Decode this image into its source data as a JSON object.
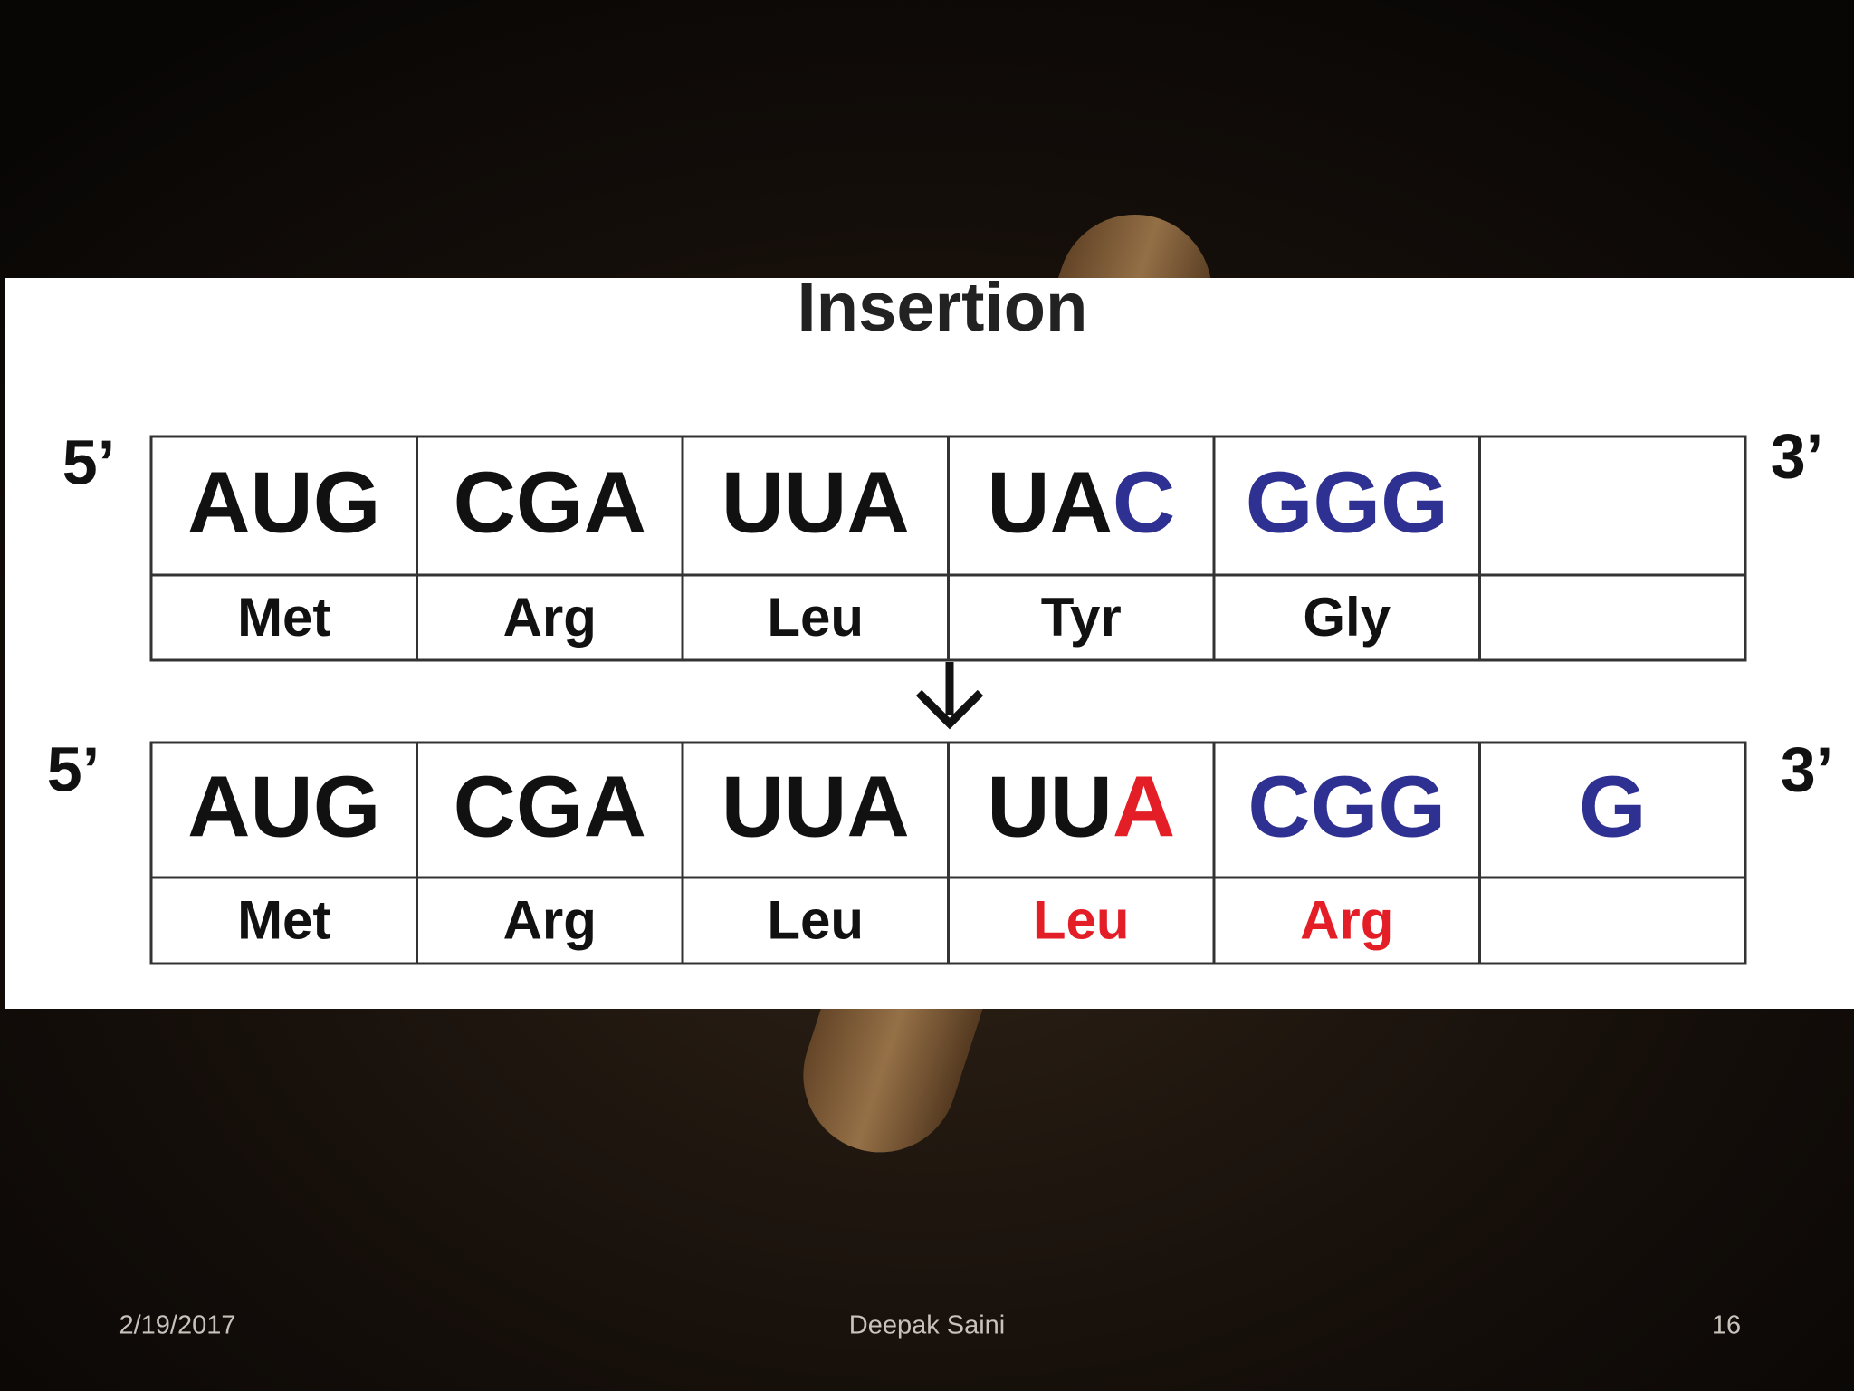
{
  "title": "Insertion",
  "sequences": [
    {
      "five_prime": "5’",
      "three_prime": "3’",
      "codons": [
        [
          {
            "text": "AUG",
            "color": "#111111"
          }
        ],
        [
          {
            "text": "CGA",
            "color": "#111111"
          }
        ],
        [
          {
            "text": "UUA",
            "color": "#111111"
          }
        ],
        [
          {
            "text": "UA",
            "color": "#111111"
          },
          {
            "text": "C",
            "color": "#2e3192"
          }
        ],
        [
          {
            "text": "GGG",
            "color": "#2e3192"
          }
        ]
      ],
      "amino_acids": [
        {
          "text": "Met",
          "color": "#111111"
        },
        {
          "text": "Arg",
          "color": "#111111"
        },
        {
          "text": "Leu",
          "color": "#111111"
        },
        {
          "text": "Tyr",
          "color": "#111111"
        },
        {
          "text": "Gly",
          "color": "#111111"
        }
      ]
    },
    {
      "five_prime": "5’",
      "three_prime": "3’",
      "codons": [
        [
          {
            "text": "AUG",
            "color": "#111111"
          }
        ],
        [
          {
            "text": "CGA",
            "color": "#111111"
          }
        ],
        [
          {
            "text": "UUA",
            "color": "#111111"
          }
        ],
        [
          {
            "text": "UU",
            "color": "#111111"
          },
          {
            "text": "A",
            "color": "#e41e26"
          }
        ],
        [
          {
            "text": "CGG",
            "color": "#2e3192"
          }
        ],
        [
          {
            "text": "G",
            "color": "#2e3192"
          }
        ]
      ],
      "amino_acids": [
        {
          "text": "Met",
          "color": "#111111"
        },
        {
          "text": "Arg",
          "color": "#111111"
        },
        {
          "text": "Leu",
          "color": "#111111"
        },
        {
          "text": "Leu",
          "color": "#e41e26"
        },
        {
          "text": "Arg",
          "color": "#e41e26"
        }
      ]
    }
  ],
  "footer": {
    "date": "2/19/2017",
    "author": "Deepak Saini",
    "page": "16"
  }
}
